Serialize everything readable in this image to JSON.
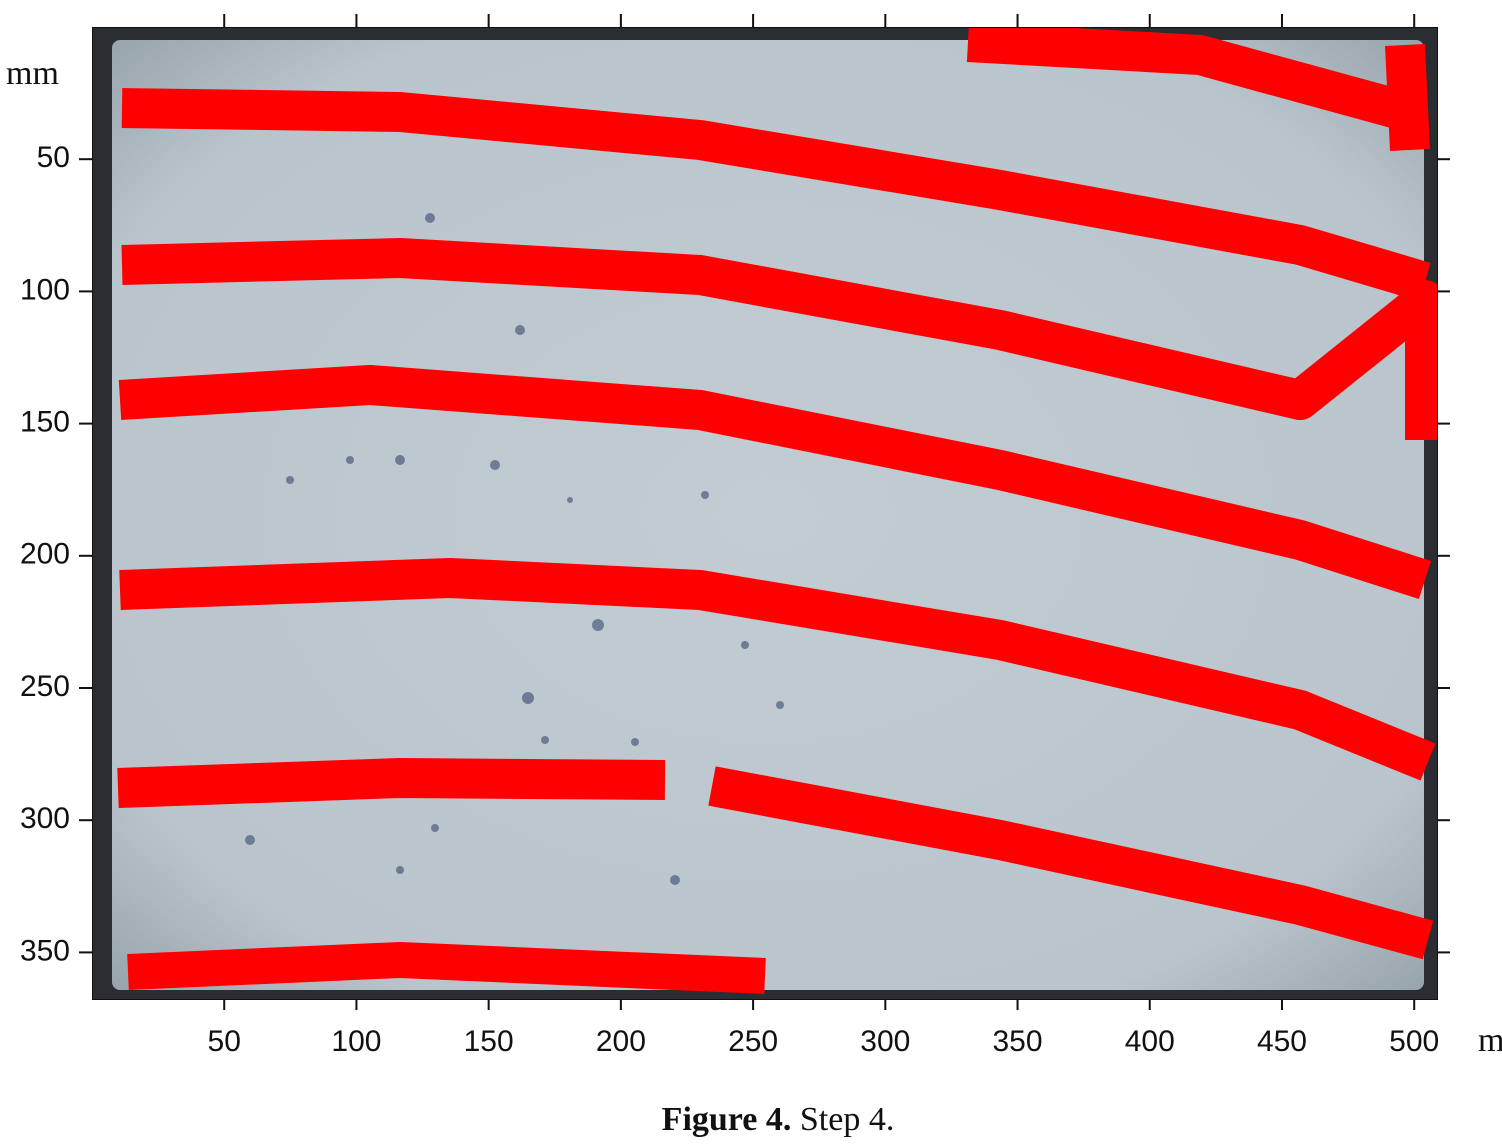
{
  "chart_data": {
    "type": "image",
    "xlabel": "mm",
    "ylabel": "mm",
    "xlim": [
      0,
      509
    ],
    "ylim": [
      0,
      368
    ],
    "xticks": [
      50,
      100,
      150,
      200,
      250,
      300,
      350,
      400,
      450,
      500
    ],
    "yticks": [
      50,
      100,
      150,
      200,
      250,
      300,
      350
    ],
    "y_inverted": true
  },
  "caption": {
    "label": "Figure 4.",
    "text": "Step 4."
  }
}
